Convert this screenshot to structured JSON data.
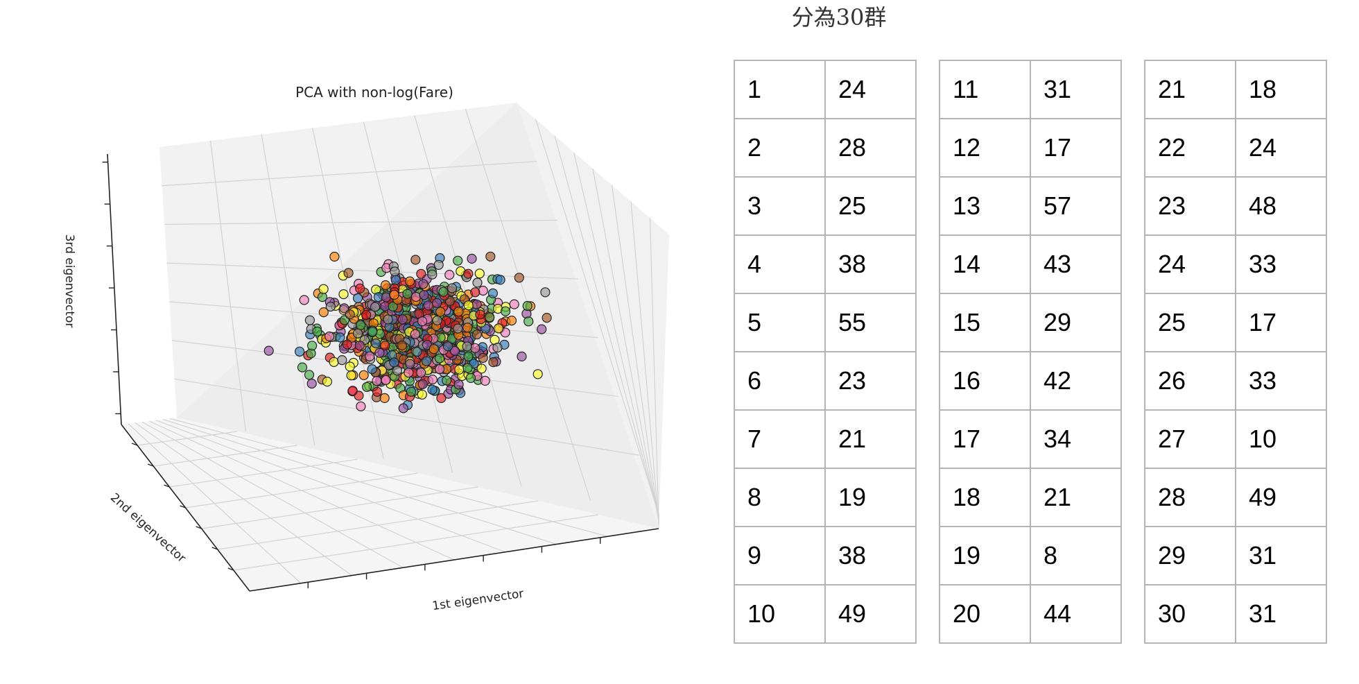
{
  "page": {
    "heading": "分為30群"
  },
  "chart_data": {
    "type": "scatter",
    "projection": "3d",
    "title": "PCA with non-log(Fare)",
    "xlabel": "1st eigenvector",
    "ylabel": "2nd eigenvector",
    "zlabel": "3rd eigenvector",
    "grid": true,
    "tick_labels": "none",
    "point_count_shown": "about 1000 points, colored by cluster",
    "colormap": "Set1-like",
    "colors": [
      "#e41a1c",
      "#377eb8",
      "#4daf4a",
      "#984ea3",
      "#ff7f00",
      "#ffff33",
      "#a65628",
      "#f781bf",
      "#999999"
    ]
  },
  "cluster_table": {
    "columns": [
      [
        [
          1,
          24
        ],
        [
          2,
          28
        ],
        [
          3,
          25
        ],
        [
          4,
          38
        ],
        [
          5,
          55
        ],
        [
          6,
          23
        ],
        [
          7,
          21
        ],
        [
          8,
          19
        ],
        [
          9,
          38
        ],
        [
          10,
          49
        ]
      ],
      [
        [
          11,
          31
        ],
        [
          12,
          17
        ],
        [
          13,
          57
        ],
        [
          14,
          43
        ],
        [
          15,
          29
        ],
        [
          16,
          42
        ],
        [
          17,
          34
        ],
        [
          18,
          21
        ],
        [
          19,
          8
        ],
        [
          20,
          44
        ]
      ],
      [
        [
          21,
          18
        ],
        [
          22,
          24
        ],
        [
          23,
          48
        ],
        [
          24,
          33
        ],
        [
          25,
          17
        ],
        [
          26,
          33
        ],
        [
          27,
          10
        ],
        [
          28,
          49
        ],
        [
          29,
          31
        ],
        [
          30,
          31
        ]
      ]
    ]
  }
}
